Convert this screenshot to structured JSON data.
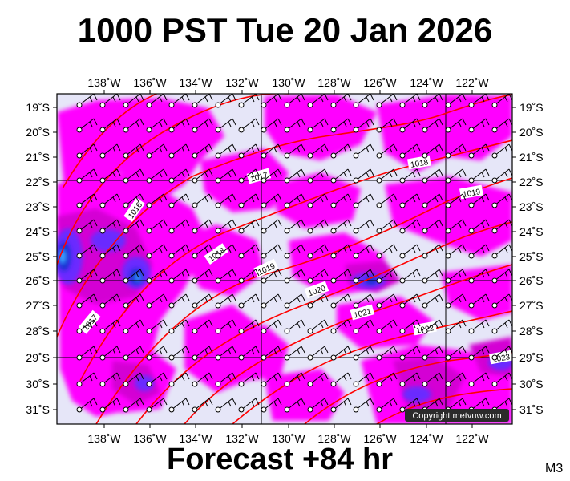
{
  "header": {
    "title": "1000 PST Tue 20 Jan 2026"
  },
  "footer": {
    "forecast": "Forecast +84 hr",
    "model": "M3"
  },
  "map": {
    "lon_labels": [
      "138˚W",
      "136˚W",
      "134˚W",
      "132˚W",
      "130˚W",
      "128˚W",
      "126˚W",
      "124˚W",
      "122˚W"
    ],
    "lat_labels": [
      "19˚S",
      "20˚S",
      "21˚S",
      "22˚S",
      "23˚S",
      "24˚S",
      "25˚S",
      "26˚S",
      "27˚S",
      "28˚S",
      "29˚S",
      "30˚S",
      "31˚S"
    ],
    "isobar_labels": [
      "1016",
      "1017",
      "1018",
      "1019",
      "1020",
      "1021",
      "1022",
      "1017",
      "1018",
      "1019",
      "1017",
      "1023"
    ],
    "copyright": "Copyright metvuw.com",
    "colors": {
      "background": "#e6e6f8",
      "precip": "#ff00ff",
      "precip_dark": "#d400d4",
      "heavy": "#6a2bff",
      "heaviest": "#1530d0",
      "isobar": "#ff0000"
    }
  }
}
